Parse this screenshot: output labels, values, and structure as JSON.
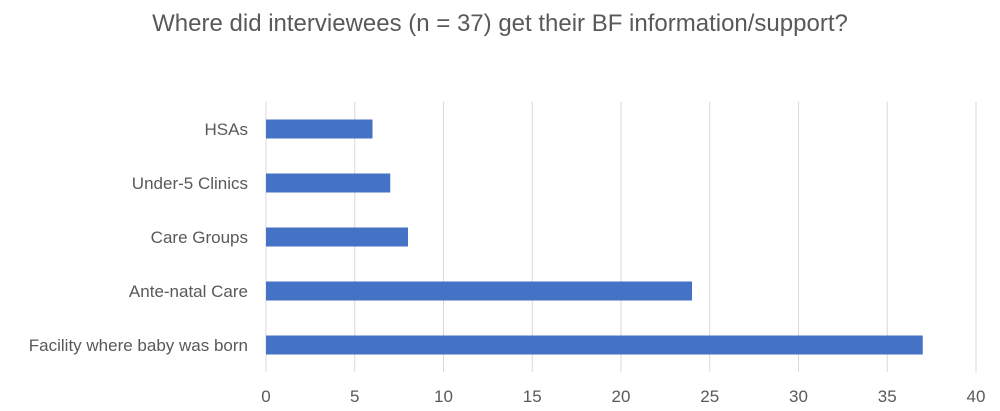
{
  "chart_data": {
    "type": "bar",
    "orientation": "horizontal",
    "title": "Where did interviewees (n = 37) get their BF information/support?",
    "categories": [
      "HSAs",
      "Under-5 Clinics",
      "Care Groups",
      "Ante-natal Care",
      "Facility where baby was born"
    ],
    "values": [
      6,
      7,
      8,
      24,
      37
    ],
    "xlim": [
      0,
      40
    ],
    "x_ticks": [
      0,
      5,
      10,
      15,
      20,
      25,
      30,
      35,
      40
    ],
    "grid": "vertical",
    "bar_color": "#4472C4",
    "grid_color": "#D9D9D9"
  }
}
